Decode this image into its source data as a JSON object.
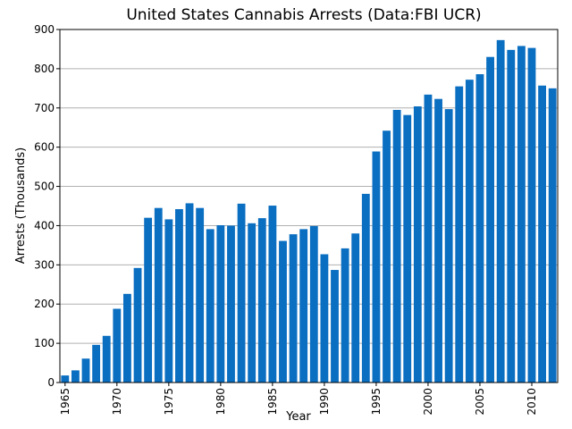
{
  "chart_data": {
    "type": "bar",
    "title": "United States Cannabis Arrests (Data:FBI UCR)",
    "xlabel": "Year",
    "ylabel": "Arrests (Thousands)",
    "x": [
      1965,
      1966,
      1967,
      1968,
      1969,
      1970,
      1971,
      1972,
      1973,
      1974,
      1975,
      1976,
      1977,
      1978,
      1979,
      1980,
      1981,
      1982,
      1983,
      1984,
      1985,
      1986,
      1987,
      1988,
      1989,
      1990,
      1991,
      1992,
      1993,
      1994,
      1995,
      1996,
      1997,
      1998,
      1999,
      2000,
      2001,
      2002,
      2003,
      2004,
      2005,
      2006,
      2007,
      2008,
      2009,
      2010,
      2011,
      2012
    ],
    "values": [
      18,
      31,
      61,
      96,
      119,
      188,
      226,
      292,
      420,
      445,
      416,
      442,
      457,
      445,
      391,
      401,
      400,
      456,
      406,
      419,
      451,
      361,
      378,
      391,
      399,
      327,
      287,
      342,
      380,
      481,
      589,
      642,
      695,
      682,
      704,
      734,
      723,
      697,
      755,
      772,
      786,
      830,
      873,
      848,
      858,
      853,
      757,
      750
    ],
    "xticks": [
      1965,
      1970,
      1975,
      1980,
      1985,
      1990,
      1995,
      2000,
      2005,
      2010
    ],
    "yticks": [
      0,
      100,
      200,
      300,
      400,
      500,
      600,
      700,
      800,
      900
    ],
    "ylim": [
      0,
      900
    ],
    "xlim": [
      1964.5,
      2012.5
    ],
    "grid": "horizontal",
    "bar_color": "#0a6ec1"
  }
}
